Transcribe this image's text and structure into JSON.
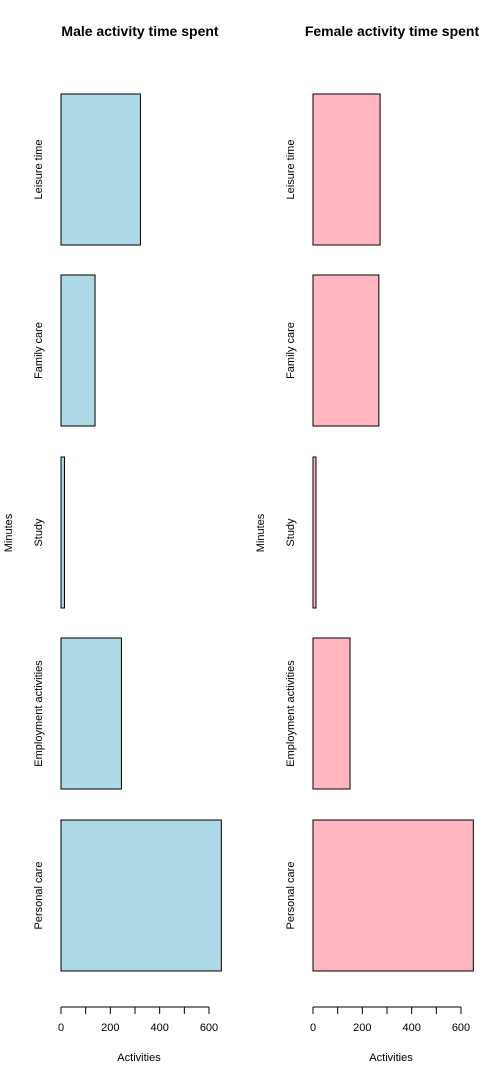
{
  "chart_data": [
    {
      "type": "bar",
      "orientation": "horizontal",
      "title": "Male activity time spent",
      "xlabel": "Activities",
      "ylabel": "Minutes",
      "categories": [
        "Personal care",
        "Employment activities",
        "Study",
        "Family care",
        "Leisure time"
      ],
      "values": [
        650,
        245,
        14,
        138,
        322
      ],
      "xlim": [
        0,
        650
      ],
      "xticks": [
        0,
        100,
        200,
        300,
        400,
        500,
        600
      ],
      "xtick_labels": [
        "0",
        "",
        "200",
        "",
        "400",
        "",
        "600"
      ],
      "bar_color": "#add8e6",
      "grid": false
    },
    {
      "type": "bar",
      "orientation": "horizontal",
      "title": "Female activity time spent",
      "xlabel": "Activities",
      "ylabel": "Minutes",
      "categories": [
        "Personal care",
        "Employment activities",
        "Study",
        "Family care",
        "Leisure time"
      ],
      "values": [
        650,
        150,
        12,
        267,
        272
      ],
      "xlim": [
        0,
        650
      ],
      "xticks": [
        0,
        100,
        200,
        300,
        400,
        500,
        600
      ],
      "xtick_labels": [
        "0",
        "",
        "200",
        "",
        "400",
        "",
        "600"
      ],
      "bar_color": "#ffb6c1",
      "grid": false
    }
  ]
}
